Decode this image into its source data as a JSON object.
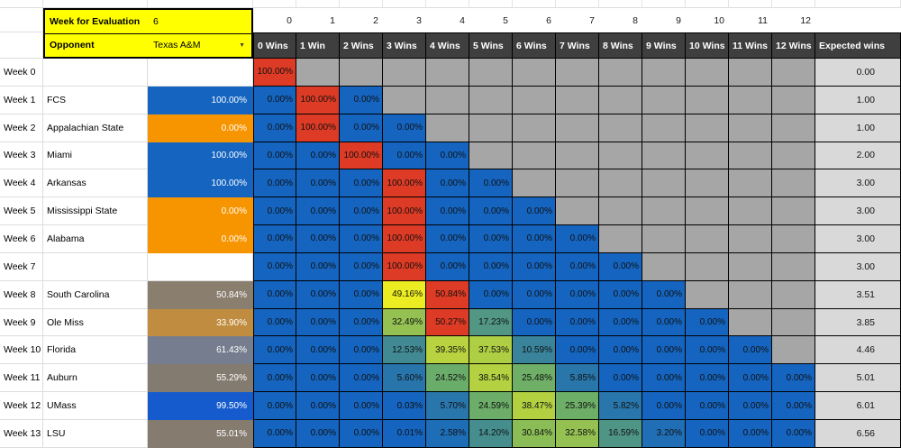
{
  "controls": {
    "week_label": "Week for Evaluation",
    "week_value": "6",
    "opponent_label": "Opponent",
    "opponent_value": "Texas A&M"
  },
  "header": {
    "col_numbers": [
      "0",
      "1",
      "2",
      "3",
      "4",
      "5",
      "6",
      "7",
      "8",
      "9",
      "10",
      "11",
      "12"
    ],
    "win_headers": [
      "0 Wins",
      "1 Win",
      "2 Wins",
      "3 Wins",
      "4 Wins",
      "5 Wins",
      "6 Wins",
      "7 Wins",
      "8 Wins",
      "9 Wins",
      "10 Wins",
      "11 Wins",
      "12 Wins"
    ],
    "expected_header": "Expected wins"
  },
  "colors": {
    "gradient_low": "#1565c0",
    "gradient_mid": "#6cae68",
    "gradient_high": "#f0ee20",
    "gradient_max": "#dd3b25",
    "empty_cell": "#a6a6a6",
    "header_bg": "#3f3f3f",
    "expected_bg": "#d9d9d9",
    "control_bg": "#ffff00"
  },
  "rows": [
    {
      "week": "Week 0",
      "opponent": "",
      "prob": null,
      "prob_color": null,
      "cells": [
        100
      ],
      "expected": "0.00"
    },
    {
      "week": "Week 1",
      "opponent": "FCS",
      "prob": "100.00%",
      "prob_color": "#1565c0",
      "cells": [
        0,
        100,
        0
      ],
      "expected": "1.00"
    },
    {
      "week": "Week 2",
      "opponent": "Appalachian State",
      "prob": "0.00%",
      "prob_color": "#f79500",
      "cells": [
        0,
        100,
        0,
        0
      ],
      "expected": "1.00"
    },
    {
      "week": "Week 3",
      "opponent": "Miami",
      "prob": "100.00%",
      "prob_color": "#1565c0",
      "cells": [
        0,
        0,
        100,
        0,
        0
      ],
      "expected": "2.00"
    },
    {
      "week": "Week 4",
      "opponent": "Arkansas",
      "prob": "100.00%",
      "prob_color": "#1565c0",
      "cells": [
        0,
        0,
        0,
        100,
        0,
        0
      ],
      "expected": "3.00"
    },
    {
      "week": "Week 5",
      "opponent": "Mississippi State",
      "prob": "0.00%",
      "prob_color": "#f79500",
      "cells": [
        0,
        0,
        0,
        100,
        0,
        0,
        0
      ],
      "expected": "3.00"
    },
    {
      "week": "Week 6",
      "opponent": "Alabama",
      "prob": "0.00%",
      "prob_color": "#f79500",
      "cells": [
        0,
        0,
        0,
        100,
        0,
        0,
        0,
        0
      ],
      "expected": "3.00"
    },
    {
      "week": "Week 7",
      "opponent": "",
      "prob": null,
      "prob_color": null,
      "cells": [
        0,
        0,
        0,
        100,
        0,
        0,
        0,
        0,
        0
      ],
      "expected": "3.00"
    },
    {
      "week": "Week 8",
      "opponent": "South Carolina",
      "prob": "50.84%",
      "prob_color": "#8a7e6f",
      "cells": [
        0,
        0,
        0,
        49.16,
        50.84,
        0,
        0,
        0,
        0,
        0
      ],
      "expected": "3.51"
    },
    {
      "week": "Week 9",
      "opponent": "Ole Miss",
      "prob": "33.90%",
      "prob_color": "#c08c3f",
      "cells": [
        0,
        0,
        0,
        32.49,
        50.27,
        17.23,
        0,
        0,
        0,
        0,
        0
      ],
      "expected": "3.85"
    },
    {
      "week": "Week 10",
      "opponent": "Florida",
      "prob": "61.43%",
      "prob_color": "#757d8e",
      "cells": [
        0,
        0,
        0,
        12.53,
        39.35,
        37.53,
        10.59,
        0,
        0,
        0,
        0,
        0
      ],
      "expected": "4.46"
    },
    {
      "week": "Week 11",
      "opponent": "Auburn",
      "prob": "55.29%",
      "prob_color": "#847b70",
      "cells": [
        0,
        0,
        0,
        5.6,
        24.52,
        38.54,
        25.48,
        5.85,
        0,
        0,
        0,
        0,
        0
      ],
      "expected": "5.01"
    },
    {
      "week": "Week 12",
      "opponent": "UMass",
      "prob": "99.50%",
      "prob_color": "#155bcd",
      "cells": [
        0,
        0,
        0,
        0.03,
        5.7,
        24.59,
        38.47,
        25.39,
        5.82,
        0,
        0,
        0,
        0
      ],
      "expected": "6.01"
    },
    {
      "week": "Week 13",
      "opponent": "LSU",
      "prob": "55.01%",
      "prob_color": "#857b6f",
      "cells": [
        0,
        0,
        0,
        0.01,
        2.58,
        14.2,
        30.84,
        32.58,
        16.59,
        3.2,
        0,
        0,
        0
      ],
      "expected": "6.56"
    }
  ]
}
